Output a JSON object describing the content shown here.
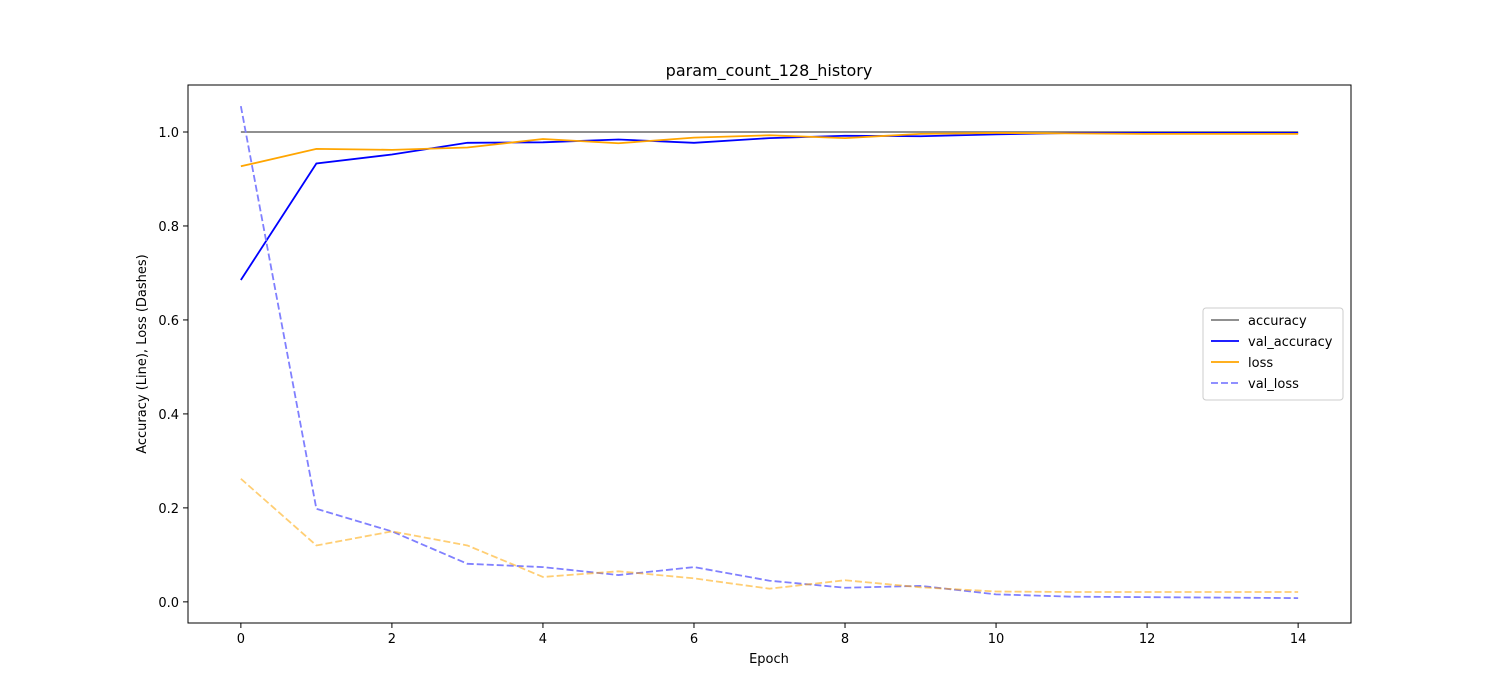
{
  "chart_data": {
    "type": "line",
    "title": "param_count_128_history",
    "xlabel": "Epoch",
    "ylabel": "Accuracy (Line), Loss (Dashes)",
    "xlim": [
      -0.7,
      14.7
    ],
    "ylim": [
      -0.045,
      1.1
    ],
    "xticks": [
      0,
      2,
      4,
      6,
      8,
      10,
      12,
      14
    ],
    "yticks": [
      0.0,
      0.2,
      0.4,
      0.6,
      0.8,
      1.0
    ],
    "ytick_labels": [
      "0.0",
      "0.2",
      "0.4",
      "0.6",
      "0.8",
      "1.0"
    ],
    "grid": false,
    "legend_position": "center-right",
    "legend": [
      {
        "label": "accuracy",
        "color": "#808080",
        "style": "solid"
      },
      {
        "label": "val_accuracy",
        "color": "#0000ff",
        "style": "solid"
      },
      {
        "label": "loss",
        "color": "#ffa500",
        "style": "solid"
      },
      {
        "label": "val_loss",
        "color": "#8080ff",
        "style": "dashed"
      }
    ],
    "x": [
      0,
      1,
      2,
      3,
      4,
      5,
      6,
      7,
      8,
      9,
      10,
      11,
      12,
      13,
      14
    ],
    "series": [
      {
        "name": "accuracy",
        "color": "#808080",
        "style": "solid",
        "opacity": 1,
        "values": [
          1.0,
          1.0,
          1.0,
          1.0,
          1.0,
          1.0,
          1.0,
          1.0,
          1.0,
          1.0,
          1.0,
          1.0,
          1.0,
          1.0,
          1.0
        ]
      },
      {
        "name": "val_accuracy",
        "color": "#0000ff",
        "style": "solid",
        "opacity": 1,
        "values": [
          0.685,
          0.933,
          0.952,
          0.977,
          0.978,
          0.984,
          0.977,
          0.987,
          0.992,
          0.991,
          0.995,
          0.998,
          0.998,
          0.998,
          0.998
        ]
      },
      {
        "name": "loss",
        "color": "#ffa500",
        "style": "solid",
        "opacity": 1,
        "values": [
          0.927,
          0.964,
          0.962,
          0.967,
          0.985,
          0.976,
          0.988,
          0.993,
          0.987,
          0.996,
          0.998,
          0.997,
          0.996,
          0.996,
          0.996
        ]
      },
      {
        "name": "val_loss",
        "color": "#8080ff",
        "style": "dashed",
        "opacity": 1,
        "values": [
          1.055,
          0.198,
          0.15,
          0.081,
          0.074,
          0.057,
          0.074,
          0.045,
          0.03,
          0.034,
          0.016,
          0.011,
          0.01,
          0.009,
          0.008
        ]
      },
      {
        "color": "#ffa500",
        "style": "dashed",
        "opacity": 0.55,
        "values": [
          0.262,
          0.12,
          0.15,
          0.12,
          0.053,
          0.065,
          0.05,
          0.028,
          0.046,
          0.031,
          0.022,
          0.021,
          0.021,
          0.021,
          0.021
        ]
      }
    ]
  }
}
